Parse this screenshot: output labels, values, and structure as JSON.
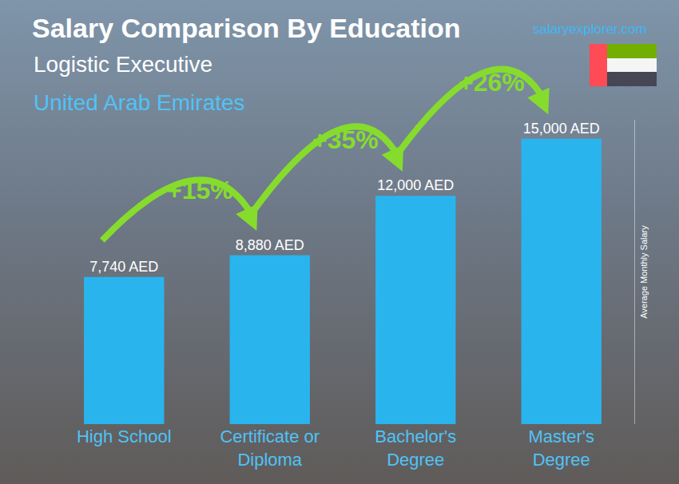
{
  "chart_data": {
    "type": "bar",
    "title": "Salary Comparison By Education",
    "subtitle": [
      "Logistic Executive",
      "United Arab Emirates"
    ],
    "source": "salaryexplorer.com",
    "y_label": "Average Monthly Salary",
    "categories": [
      "High School",
      "Certificate or Diploma",
      "Bachelor's Degree",
      "Master's Degree"
    ],
    "values": [
      7740,
      8880,
      12000,
      15000
    ],
    "value_labels": [
      "7,740 AED",
      "8,880 AED",
      "12,000 AED",
      "15,000 AED"
    ],
    "color": "#2ab4ee",
    "ylim": [
      0,
      16000
    ],
    "tick_labels": "x",
    "data_labels": true,
    "grid": false,
    "annotations": [
      {
        "text": "+15%",
        "from": "High School",
        "to": "Certificate or Diploma"
      },
      {
        "text": "+35%",
        "from": "Certificate or Diploma",
        "to": "Bachelor's Degree"
      },
      {
        "text": "+26%",
        "from": "Bachelor's Degree",
        "to": "Master's Degree"
      }
    ]
  }
}
